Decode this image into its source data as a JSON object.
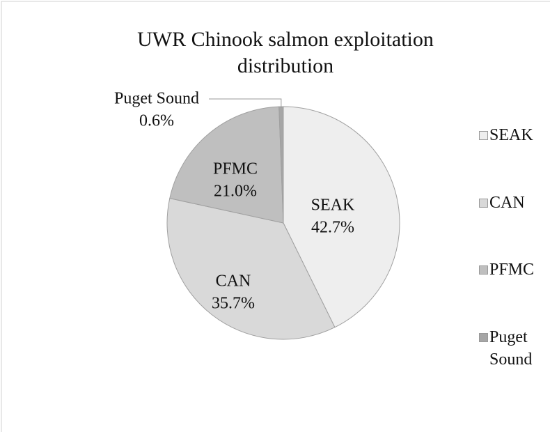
{
  "chart_data": {
    "type": "pie",
    "title": "UWR Chinook salmon exploitation distribution",
    "categories": [
      "SEAK",
      "CAN",
      "PFMC",
      "Puget Sound"
    ],
    "values": [
      42.7,
      35.7,
      21.0,
      0.6
    ],
    "value_labels": [
      "42.7%",
      "35.7%",
      "21.0%",
      "0.6%"
    ],
    "colors": [
      "#eeeeee",
      "#d9d9d9",
      "#bfbfbf",
      "#a6a6a6"
    ],
    "legend": "right"
  }
}
